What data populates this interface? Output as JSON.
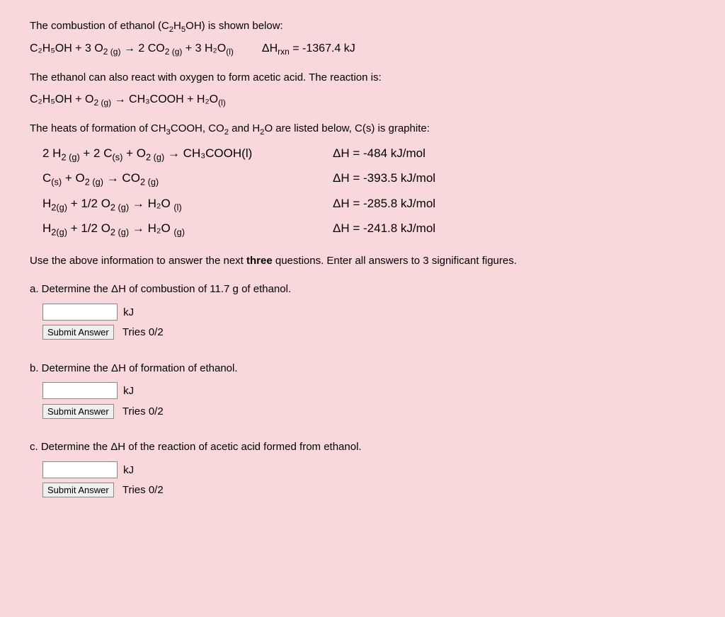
{
  "text": {
    "intro1_pre": "The combustion of ethanol (C",
    "intro1_post": "OH) is shown below:",
    "combustion_eq_left": "C₂H₅OH + 3 O",
    "combustion_eq_mid": " → 2 CO",
    "combustion_eq_right": " + 3 H₂O",
    "combustion_dh_label": "ΔH",
    "combustion_dh_val": " = -1367.4 kJ",
    "intro2": "The ethanol can also react with oxygen to form acetic acid. The reaction is:",
    "acetic_eq": "C₂H₅OH + O",
    "acetic_eq2": " → CH₃COOH + H₂O",
    "intro3_a": "The heats of formation of CH",
    "intro3_b": "COOH, CO",
    "intro3_c": " and H",
    "intro3_d": "O are listed below, C(s) is graphite:",
    "row1_l": "2 H",
    "row1_l2": " + 2 C",
    "row1_l3": " + O",
    "row1_l4": " → CH₃COOH(l)",
    "row1_r": "ΔH = -484 kJ/mol",
    "row2_l": "C",
    "row2_l2": " + O",
    "row2_l3": " → CO",
    "row2_r": "ΔH = -393.5 kJ/mol",
    "row3_l": "H",
    "row3_l2": " + 1/2 O",
    "row3_l3": " → H₂O ",
    "row3_r": "ΔH = -285.8 kJ/mol",
    "row4_l": "H",
    "row4_l2": " + 1/2 O",
    "row4_l3": " → H₂O ",
    "row4_r": "ΔH = -241.8 kJ/mol",
    "instr_pre": "Use the above information to answer the next ",
    "instr_bold": "three",
    "instr_post": " questions. Enter all answers to 3 significant figures.",
    "qa": "a. Determine the ΔH of combustion of 11.7 g of ethanol.",
    "qb": "b. Determine the ΔH of formation of ethanol.",
    "qc": "c. Determine the ΔH of the reaction of acetic acid formed from ethanol.",
    "unit": "kJ",
    "submit": "Submit Answer",
    "tries": "Tries 0/2"
  },
  "subs": {
    "two": "2",
    "five": "5",
    "g": "2 (g)",
    "l": "(l)",
    "gas": "(g)",
    "solid": "(s)",
    "rxn": "rxn",
    "three": "3",
    "twog": "2(g)"
  },
  "style": {
    "background_color": "#f8d8da",
    "text_color": "#000000",
    "input_border": "#888888",
    "button_bg": "#efefef",
    "font_family": "Verdana, Arial, sans-serif",
    "base_font_size": 15
  }
}
